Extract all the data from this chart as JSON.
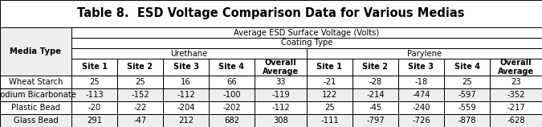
{
  "title": "Table 8.  ESD Voltage Comparison Data for Various Medias",
  "header_row1": "Average ESD Surface Voltage (Volts)",
  "header_row2": "Coating Type",
  "coating_urethane": "Urethane",
  "coating_parylene": "Parylene",
  "col_headers": [
    "Site 1",
    "Site 2",
    "Site 3",
    "Site 4",
    "Overall\nAverage",
    "Site 1",
    "Site 2",
    "Site 3",
    "Site 4",
    "Overall\nAverage"
  ],
  "row_label": "Media Type",
  "rows": [
    [
      "Wheat Starch",
      "25",
      "25",
      "16",
      "66",
      "33",
      "-21",
      "-28",
      "-18",
      "25",
      "23"
    ],
    [
      "Sodium Bicarbonate",
      "-113",
      "-152",
      "-112",
      "-100",
      "-119",
      "122",
      "-214",
      "-474",
      "-597",
      "-352"
    ],
    [
      "Plastic Bead",
      "-20",
      "-22",
      "-204",
      "-202",
      "-112",
      "25",
      "-45",
      "-240",
      "-559",
      "-217"
    ],
    [
      "Glass Bead",
      "291",
      "-47",
      "212",
      "682",
      "308",
      "-111",
      "-797",
      "-726",
      "-878",
      "-628"
    ]
  ],
  "bg_white": "#ffffff",
  "bg_light": "#eeeeee",
  "border_color": "#000000",
  "title_fontsize": 10.5,
  "cell_fontsize": 7.2,
  "header_fontsize": 7.2,
  "col_header_fontsize": 7.0
}
